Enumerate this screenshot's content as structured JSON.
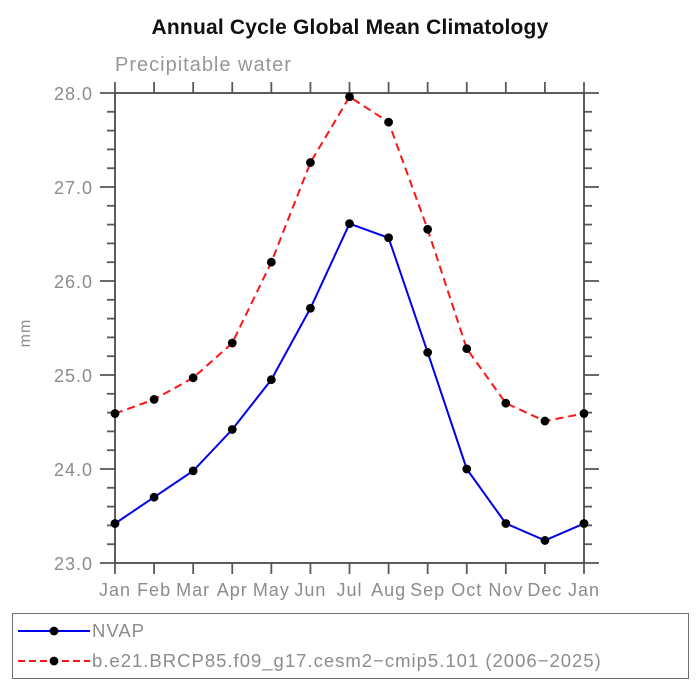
{
  "chart_data": {
    "type": "line",
    "title": "Annual Cycle Global Mean Climatology",
    "subtitle": "Precipitable water",
    "ylabel": "mm",
    "x_tick_labels": [
      "Jan",
      "Feb",
      "Mar",
      "Apr",
      "May",
      "Jun",
      "Jul",
      "Aug",
      "Sep",
      "Oct",
      "Nov",
      "Dec",
      "Jan"
    ],
    "y_ticks": [
      23.0,
      24.0,
      25.0,
      26.0,
      27.0,
      28.0
    ],
    "y_tick_labels": [
      "23.0",
      "24.0",
      "25.0",
      "26.0",
      "27.0",
      "28.0"
    ],
    "ylim": [
      23.0,
      28.0
    ],
    "minor_tick_interval": 0.2,
    "grid": false,
    "legend_position": "bottom",
    "marker": "black-dot",
    "series": [
      {
        "name": "NVAP",
        "color": "#0000ee",
        "style": "solid",
        "values": [
          23.42,
          23.7,
          23.98,
          24.42,
          24.95,
          25.71,
          26.61,
          26.46,
          25.24,
          24.0,
          23.42,
          23.24,
          23.42
        ]
      },
      {
        "name": "b.e21.BRCP85.f09_g17.cesm2−cmip5.101 (2006−2025)",
        "color": "#ff1414",
        "style": "dashed",
        "values": [
          24.59,
          24.74,
          24.97,
          25.34,
          26.2,
          27.26,
          27.96,
          27.69,
          26.55,
          25.28,
          24.7,
          24.51,
          24.59
        ]
      }
    ]
  },
  "colors": {
    "axis": "#4a4a4a",
    "label_gray": "#8c8c8c",
    "marker": "#000000"
  }
}
